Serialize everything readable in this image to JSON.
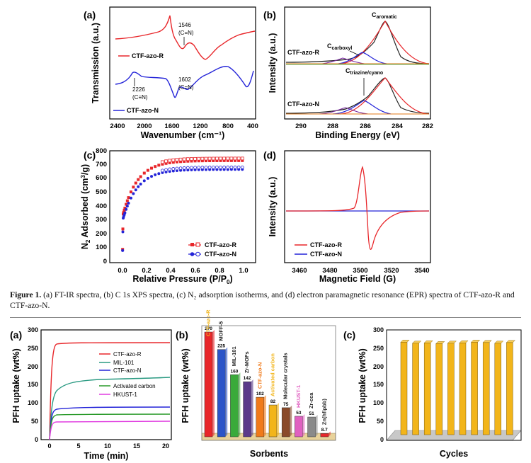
{
  "caption": {
    "label": "Figure 1.",
    "text": "(a) FT-IR spectra, (b) C 1s XPS spectra, (c) N₂ adsorption isotherms, and (d) electron paramagnetic resonance (EPR) spectra of CTF-azo-R and CTF-azo-N."
  },
  "colors": {
    "red": "#e8262a",
    "blue": "#2424d8",
    "green": "#2a9a2a",
    "teal": "#2a9a82",
    "magenta": "#e03ce0",
    "bar_yellow": "#f2b51a"
  },
  "chart_data": [
    {
      "panel": "(a)",
      "type": "line",
      "xlabel": "Wavenumber (cm⁻¹)",
      "ylabel": "Transmission (a.u.)",
      "xlim": [
        2600,
        400
      ],
      "xticks": [
        "2400",
        "2000",
        "1600",
        "1200",
        "800",
        "400"
      ],
      "series": [
        {
          "name": "CTF-azo-R",
          "color": "#e8262a"
        },
        {
          "name": "CTF-azo-N",
          "color": "#2424d8"
        }
      ],
      "annotations": [
        {
          "peak": "1546",
          "bond": "(C=N)"
        },
        {
          "peak": "2226",
          "bond": "(C≡N)"
        },
        {
          "peak": "1602",
          "bond": "(C=N)"
        }
      ]
    },
    {
      "panel": "(b)",
      "type": "line",
      "xlabel": "Binding Energy (eV)",
      "ylabel": "Intensity (a.u.)",
      "xlim": [
        291,
        282
      ],
      "xticks": [
        "290",
        "288",
        "286",
        "284",
        "282"
      ],
      "series": [
        {
          "name": "CTF-azo-R"
        },
        {
          "name": "CTF-azo-N"
        }
      ],
      "annotations": [
        "C_aromatic",
        "C_carboxyl",
        "C_triazine/cyano"
      ]
    },
    {
      "panel": "(c)",
      "type": "scatter",
      "xlabel": "Relative Pressure (P/P0)",
      "ylabel": "N2 Adsorbed (cm³/g)",
      "xlim": [
        -0.05,
        1.05
      ],
      "ylim": [
        0,
        800
      ],
      "xticks": [
        "0.0",
        "0.2",
        "0.4",
        "0.6",
        "0.8",
        "1.0"
      ],
      "yticks": [
        "0",
        "100",
        "200",
        "300",
        "400",
        "500",
        "600",
        "700",
        "800"
      ],
      "series": [
        {
          "name": "CTF-azo-R",
          "color": "#e8262a",
          "plateau": 730
        },
        {
          "name": "CTF-azo-N",
          "color": "#2424d8",
          "plateau": 667
        }
      ]
    },
    {
      "panel": "(d)",
      "type": "line",
      "xlabel": "Magnetic Field (G)",
      "ylabel": "Intensity (a.u.)",
      "xlim": [
        3450,
        3545
      ],
      "xticks": [
        "3460",
        "3480",
        "3500",
        "3520",
        "3540"
      ],
      "series": [
        {
          "name": "CTF-azo-R",
          "color": "#e8262a"
        },
        {
          "name": "CTF-azo-N",
          "color": "#2424d8"
        }
      ]
    },
    {
      "panel": "(a)",
      "type": "line",
      "xlabel": "Time (min)",
      "ylabel": "PFH uptake (wt%)",
      "xlim": [
        -1,
        21
      ],
      "ylim": [
        0,
        300
      ],
      "xticks": [
        "0",
        "5",
        "10",
        "15",
        "20"
      ],
      "yticks": [
        "0",
        "50",
        "100",
        "150",
        "200",
        "250",
        "300"
      ],
      "series": [
        {
          "name": "CTF-azo-R",
          "color": "#e8262a",
          "plateau": 268
        },
        {
          "name": "MIL-101",
          "color": "#2a9a82",
          "plateau": 160
        },
        {
          "name": "CTF-azo-N",
          "color": "#2424d8",
          "plateau": 92
        },
        {
          "name": "Activated carbon",
          "color": "#2a9a2a",
          "plateau": 78
        },
        {
          "name": "HKUST-1",
          "color": "#e03ce0",
          "plateau": 55
        }
      ]
    },
    {
      "panel": "(b)",
      "type": "bar",
      "xlabel": "Sorbents",
      "ylabel": "PFH uptake (wt%)",
      "categories": [
        "CTF-azo-R",
        "MOFF-5",
        "MIL-101",
        "Zr-MOFs",
        "CTF-azo-N",
        "Activated carbon",
        "Molecular crystals",
        "HKUST-1",
        "Zr-cca",
        "Zn(hfipbb)"
      ],
      "values": [
        270,
        225,
        160,
        142,
        102,
        82,
        75,
        53,
        51,
        8.7
      ],
      "colors": [
        "#e8262a",
        "#2a54c8",
        "#3aaa3a",
        "#5a3a8a",
        "#f07a1a",
        "#f2b51a",
        "#8a4a2a",
        "#e060c0",
        "#8a8a8a",
        "#e8262a"
      ]
    },
    {
      "panel": "(c)",
      "type": "bar",
      "xlabel": "Cycles",
      "ylabel": "PFH uptake (wt%)",
      "ylim": [
        0,
        300
      ],
      "yticks": [
        "0",
        "50",
        "100",
        "150",
        "200",
        "250",
        "300"
      ],
      "values": [
        258,
        255,
        256,
        254,
        255,
        256,
        258,
        257,
        255,
        257
      ]
    }
  ]
}
